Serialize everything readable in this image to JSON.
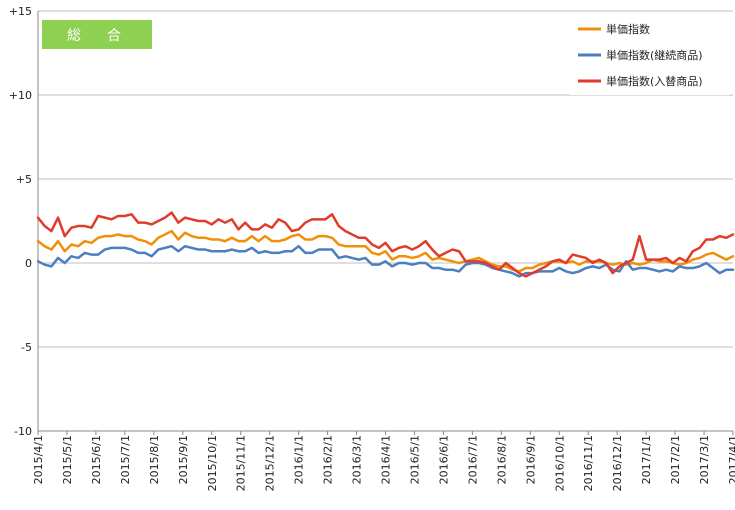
{
  "chart_data": {
    "type": "line",
    "title_badge": "総　合",
    "ylim": [
      -10,
      15
    ],
    "yticks": [
      {
        "value": 15,
        "label": "+15"
      },
      {
        "value": 10,
        "label": "+10"
      },
      {
        "value": 5,
        "label": "+5"
      },
      {
        "value": 0,
        "label": "0"
      },
      {
        "value": -5,
        "label": "-5"
      },
      {
        "value": -10,
        "label": "-10"
      }
    ],
    "x_points": 105,
    "x_labels": [
      "2015/4/1",
      "2015/5/1",
      "2015/6/1",
      "2015/7/1",
      "2015/8/1",
      "2015/9/1",
      "2015/10/1",
      "2015/11/1",
      "2015/12/1",
      "2016/1/1",
      "2016/2/1",
      "2016/3/1",
      "2016/4/1",
      "2016/5/1",
      "2016/6/1",
      "2016/7/1",
      "2016/8/1",
      "2016/9/1",
      "2016/10/1",
      "2016/11/1",
      "2016/12/1",
      "2017/1/1",
      "2017/2/1",
      "2017/3/1",
      "2017/4/1"
    ],
    "grid": "horizontal",
    "legend_position": "top-right",
    "series": [
      {
        "name": "単価指数",
        "color": "#f0900a",
        "values": [
          1.3,
          1.0,
          0.8,
          1.3,
          0.7,
          1.1,
          1.0,
          1.3,
          1.2,
          1.5,
          1.6,
          1.6,
          1.7,
          1.6,
          1.6,
          1.4,
          1.3,
          1.1,
          1.5,
          1.7,
          1.9,
          1.4,
          1.8,
          1.6,
          1.5,
          1.5,
          1.4,
          1.4,
          1.3,
          1.5,
          1.3,
          1.3,
          1.6,
          1.3,
          1.6,
          1.3,
          1.3,
          1.4,
          1.6,
          1.7,
          1.4,
          1.4,
          1.6,
          1.6,
          1.5,
          1.1,
          1.0,
          1.0,
          1.0,
          1.0,
          0.6,
          0.5,
          0.7,
          0.2,
          0.4,
          0.4,
          0.3,
          0.4,
          0.6,
          0.2,
          0.3,
          0.2,
          0.1,
          0.0,
          0.1,
          0.2,
          0.3,
          0.1,
          -0.1,
          -0.2,
          -0.2,
          -0.4,
          -0.5,
          -0.3,
          -0.3,
          -0.1,
          0.0,
          0.1,
          0.1,
          0.0,
          0.1,
          -0.1,
          0.1,
          0.1,
          0.1,
          0.0,
          -0.1,
          0.0,
          -0.1,
          0.0,
          -0.1,
          0.0,
          0.2,
          0.1,
          0.1,
          0.0,
          -0.1,
          0.0,
          0.2,
          0.3,
          0.5,
          0.6,
          0.4,
          0.2,
          0.4
        ]
      },
      {
        "name": "単価指数(継続商品)",
        "color": "#4a7fc0",
        "values": [
          0.1,
          -0.1,
          -0.2,
          0.3,
          0.0,
          0.4,
          0.3,
          0.6,
          0.5,
          0.5,
          0.8,
          0.9,
          0.9,
          0.9,
          0.8,
          0.6,
          0.6,
          0.4,
          0.8,
          0.9,
          1.0,
          0.7,
          1.0,
          0.9,
          0.8,
          0.8,
          0.7,
          0.7,
          0.7,
          0.8,
          0.7,
          0.7,
          0.9,
          0.6,
          0.7,
          0.6,
          0.6,
          0.7,
          0.7,
          1.0,
          0.6,
          0.6,
          0.8,
          0.8,
          0.8,
          0.3,
          0.4,
          0.3,
          0.2,
          0.3,
          -0.1,
          -0.1,
          0.1,
          -0.2,
          0.0,
          0.0,
          -0.1,
          0.0,
          0.0,
          -0.3,
          -0.3,
          -0.4,
          -0.4,
          -0.5,
          -0.1,
          0.0,
          0.0,
          -0.1,
          -0.3,
          -0.4,
          -0.5,
          -0.6,
          -0.8,
          -0.6,
          -0.6,
          -0.5,
          -0.5,
          -0.5,
          -0.3,
          -0.5,
          -0.6,
          -0.5,
          -0.3,
          -0.2,
          -0.3,
          -0.1,
          -0.4,
          -0.5,
          0.1,
          -0.4,
          -0.3,
          -0.3,
          -0.4,
          -0.5,
          -0.4,
          -0.5,
          -0.2,
          -0.3,
          -0.3,
          -0.2,
          0.0,
          -0.3,
          -0.6,
          -0.4,
          -0.4
        ]
      },
      {
        "name": "単価指数(入替商品)",
        "color": "#e03c2c",
        "values": [
          2.7,
          2.2,
          1.9,
          2.7,
          1.6,
          2.1,
          2.2,
          2.2,
          2.1,
          2.8,
          2.7,
          2.6,
          2.8,
          2.8,
          2.9,
          2.4,
          2.4,
          2.3,
          2.5,
          2.7,
          3.0,
          2.4,
          2.7,
          2.6,
          2.5,
          2.5,
          2.3,
          2.6,
          2.4,
          2.6,
          2.0,
          2.4,
          2.0,
          2.0,
          2.3,
          2.1,
          2.6,
          2.4,
          1.9,
          2.0,
          2.4,
          2.6,
          2.6,
          2.6,
          2.9,
          2.2,
          1.9,
          1.7,
          1.5,
          1.5,
          1.1,
          0.9,
          1.2,
          0.7,
          0.9,
          1.0,
          0.8,
          1.0,
          1.3,
          0.8,
          0.4,
          0.6,
          0.8,
          0.7,
          0.1,
          0.1,
          0.1,
          0.0,
          -0.2,
          -0.4,
          0.0,
          -0.3,
          -0.6,
          -0.8,
          -0.6,
          -0.4,
          -0.2,
          0.1,
          0.2,
          0.0,
          0.5,
          0.4,
          0.3,
          0.0,
          0.2,
          0.0,
          -0.6,
          -0.2,
          0.0,
          0.2,
          1.6,
          0.2,
          0.2,
          0.2,
          0.3,
          0.0,
          0.3,
          0.1,
          0.7,
          0.9,
          1.4,
          1.4,
          1.6,
          1.5,
          1.7
        ]
      }
    ]
  }
}
